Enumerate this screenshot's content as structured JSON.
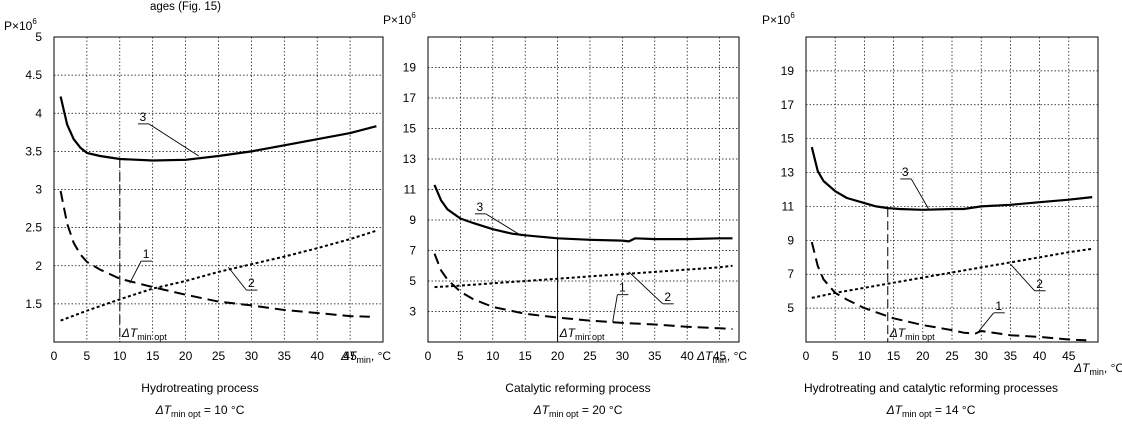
{
  "partial_caption": "ages (Fig. 15)",
  "chart_data": [
    {
      "type": "line",
      "ylabel": "P×10",
      "ylabel_exp": "6",
      "xlabel": "ΔT",
      "xlabel_sub": "min",
      "xlabel_unit": ", °C",
      "title": "Hydrotreating process",
      "subtitle_prefix": "ΔT",
      "subtitle_sub": "min opt",
      "subtitle_value": " = 10 °C",
      "xlim": [
        0,
        50
      ],
      "ylim": [
        1,
        5
      ],
      "x_ticks": [
        0,
        5,
        10,
        15,
        20,
        25,
        30,
        35,
        40,
        45
      ],
      "y_ticks": [
        1.5,
        2,
        2.5,
        3,
        3.5,
        4,
        4.5,
        5
      ],
      "y_tick_labels": [
        "1.5",
        "2",
        "2.5",
        "3",
        "3.5",
        "4",
        "4.5",
        "5"
      ],
      "opt": {
        "x": 10,
        "label": "ΔT",
        "label_sub": "min opt"
      },
      "series": [
        {
          "name": "1",
          "style": "dashed",
          "x": [
            1,
            2,
            3,
            4,
            5,
            7,
            10,
            15,
            20,
            25,
            30,
            35,
            40,
            45,
            48
          ],
          "y": [
            2.98,
            2.55,
            2.3,
            2.15,
            2.05,
            1.95,
            1.83,
            1.72,
            1.62,
            1.53,
            1.48,
            1.42,
            1.38,
            1.34,
            1.33
          ]
        },
        {
          "name": "2",
          "style": "dotted",
          "x": [
            1,
            5,
            10,
            15,
            20,
            25,
            30,
            35,
            40,
            45,
            49
          ],
          "y": [
            1.28,
            1.41,
            1.56,
            1.7,
            1.8,
            1.92,
            2.02,
            2.12,
            2.23,
            2.35,
            2.46
          ]
        },
        {
          "name": "3",
          "style": "solid",
          "x": [
            1,
            2,
            3,
            4,
            5,
            7,
            10,
            15,
            20,
            25,
            30,
            35,
            40,
            45,
            49
          ],
          "y": [
            4.22,
            3.85,
            3.66,
            3.55,
            3.48,
            3.44,
            3.4,
            3.38,
            3.39,
            3.44,
            3.5,
            3.58,
            3.66,
            3.74,
            3.83
          ]
        }
      ],
      "curve_labels": [
        {
          "text": "1",
          "x": 14,
          "y": 2.1,
          "lx": 11.5,
          "ly": 1.77
        },
        {
          "text": "2",
          "x": 30,
          "y": 1.72,
          "lx": 26.5,
          "ly": 1.98
        },
        {
          "text": "3",
          "x": 13.5,
          "y": 3.9,
          "lx": 22,
          "ly": 3.44
        }
      ]
    },
    {
      "type": "line",
      "ylabel": "P×10",
      "ylabel_exp": "6",
      "xlabel": "ΔT",
      "xlabel_sub": "min",
      "xlabel_unit": ", °C",
      "title": "Catalytic reforming process",
      "subtitle_prefix": "ΔT",
      "subtitle_sub": "min opt",
      "subtitle_value": " = 20 °C",
      "xlim": [
        0,
        48
      ],
      "ylim": [
        1,
        21
      ],
      "x_ticks": [
        0,
        5,
        10,
        15,
        20,
        25,
        30,
        35,
        40,
        45
      ],
      "y_ticks": [
        3,
        5,
        7,
        9,
        11,
        13,
        15,
        17,
        19
      ],
      "y_tick_labels": [
        "3",
        "5",
        "7",
        "9",
        "11",
        "13",
        "15",
        "17",
        "19"
      ],
      "opt": {
        "x": 20,
        "label": "ΔT",
        "label_sub": "min opt"
      },
      "series": [
        {
          "name": "1",
          "style": "dashed",
          "x": [
            1,
            2,
            3,
            4,
            5,
            7,
            10,
            15,
            20,
            25,
            30,
            35,
            40,
            45,
            47
          ],
          "y": [
            6.8,
            5.7,
            5.1,
            4.7,
            4.3,
            3.8,
            3.3,
            2.85,
            2.6,
            2.4,
            2.25,
            2.15,
            2.0,
            1.9,
            1.85
          ]
        },
        {
          "name": "2",
          "style": "dotted",
          "x": [
            1,
            5,
            10,
            15,
            20,
            25,
            30,
            35,
            40,
            45,
            47
          ],
          "y": [
            4.6,
            4.7,
            4.85,
            5.0,
            5.15,
            5.3,
            5.45,
            5.6,
            5.75,
            5.9,
            6.0
          ]
        },
        {
          "name": "3",
          "style": "solid",
          "x": [
            1,
            2,
            3,
            5,
            7,
            10,
            13,
            15,
            20,
            25,
            30,
            31,
            32,
            35,
            40,
            45,
            47
          ],
          "y": [
            11.3,
            10.3,
            9.7,
            9.1,
            8.8,
            8.4,
            8.1,
            8.0,
            7.8,
            7.7,
            7.65,
            7.6,
            7.8,
            7.75,
            7.75,
            7.8,
            7.8
          ]
        }
      ],
      "curve_labels": [
        {
          "text": "1",
          "x": 30,
          "y": 4.3,
          "lx": 28.5,
          "ly": 2.3
        },
        {
          "text": "2",
          "x": 37,
          "y": 3.7,
          "lx": 31,
          "ly": 5.6
        },
        {
          "text": "3",
          "x": 8,
          "y": 9.6,
          "lx": 14.5,
          "ly": 7.95
        }
      ]
    },
    {
      "type": "line",
      "ylabel": "P×10",
      "ylabel_exp": "6",
      "xlabel": "ΔT",
      "xlabel_sub": "min",
      "xlabel_unit": ", °C",
      "title": "Hydrotreating and catalytic reforming processes",
      "subtitle_prefix": "ΔT",
      "subtitle_sub": "min opt",
      "subtitle_value": " = 14 °C",
      "xlim": [
        0,
        50
      ],
      "ylim": [
        3,
        21
      ],
      "x_ticks": [
        0,
        5,
        10,
        15,
        20,
        25,
        30,
        35,
        40,
        45
      ],
      "y_ticks": [
        5,
        7,
        9,
        11,
        13,
        15,
        17,
        19
      ],
      "y_tick_labels": [
        "5",
        "7",
        "9",
        "11",
        "13",
        "15",
        "17",
        "19"
      ],
      "opt": {
        "x": 14,
        "label": "ΔT",
        "label_sub": "min opt"
      },
      "series": [
        {
          "name": "1",
          "style": "dashed",
          "x": [
            1,
            2,
            3,
            5,
            7,
            10,
            15,
            20,
            25,
            27,
            29,
            30,
            35,
            40,
            45,
            48
          ],
          "y": [
            8.9,
            7.5,
            6.7,
            5.9,
            5.5,
            5.0,
            4.4,
            4.0,
            3.7,
            3.55,
            3.5,
            3.65,
            3.4,
            3.3,
            3.15,
            3.1
          ]
        },
        {
          "name": "2",
          "style": "dotted",
          "x": [
            1,
            5,
            10,
            15,
            20,
            25,
            30,
            35,
            40,
            45,
            49
          ],
          "y": [
            5.6,
            5.9,
            6.2,
            6.5,
            6.8,
            7.1,
            7.4,
            7.7,
            8.0,
            8.3,
            8.5
          ]
        },
        {
          "name": "3",
          "style": "solid",
          "x": [
            1,
            2,
            3,
            5,
            7,
            10,
            12,
            14,
            16,
            20,
            25,
            27,
            30,
            35,
            40,
            45,
            49
          ],
          "y": [
            14.5,
            13.1,
            12.5,
            11.9,
            11.5,
            11.2,
            11.0,
            10.9,
            10.85,
            10.8,
            10.85,
            10.85,
            11.0,
            11.1,
            11.25,
            11.4,
            11.55
          ]
        }
      ],
      "curve_labels": [
        {
          "text": "1",
          "x": 33,
          "y": 4.9,
          "lx": 29.5,
          "ly": 3.6
        },
        {
          "text": "2",
          "x": 40,
          "y": 6.2,
          "lx": 35,
          "ly": 7.6
        },
        {
          "text": "3",
          "x": 17,
          "y": 12.8,
          "lx": 21,
          "ly": 10.85
        }
      ]
    }
  ]
}
